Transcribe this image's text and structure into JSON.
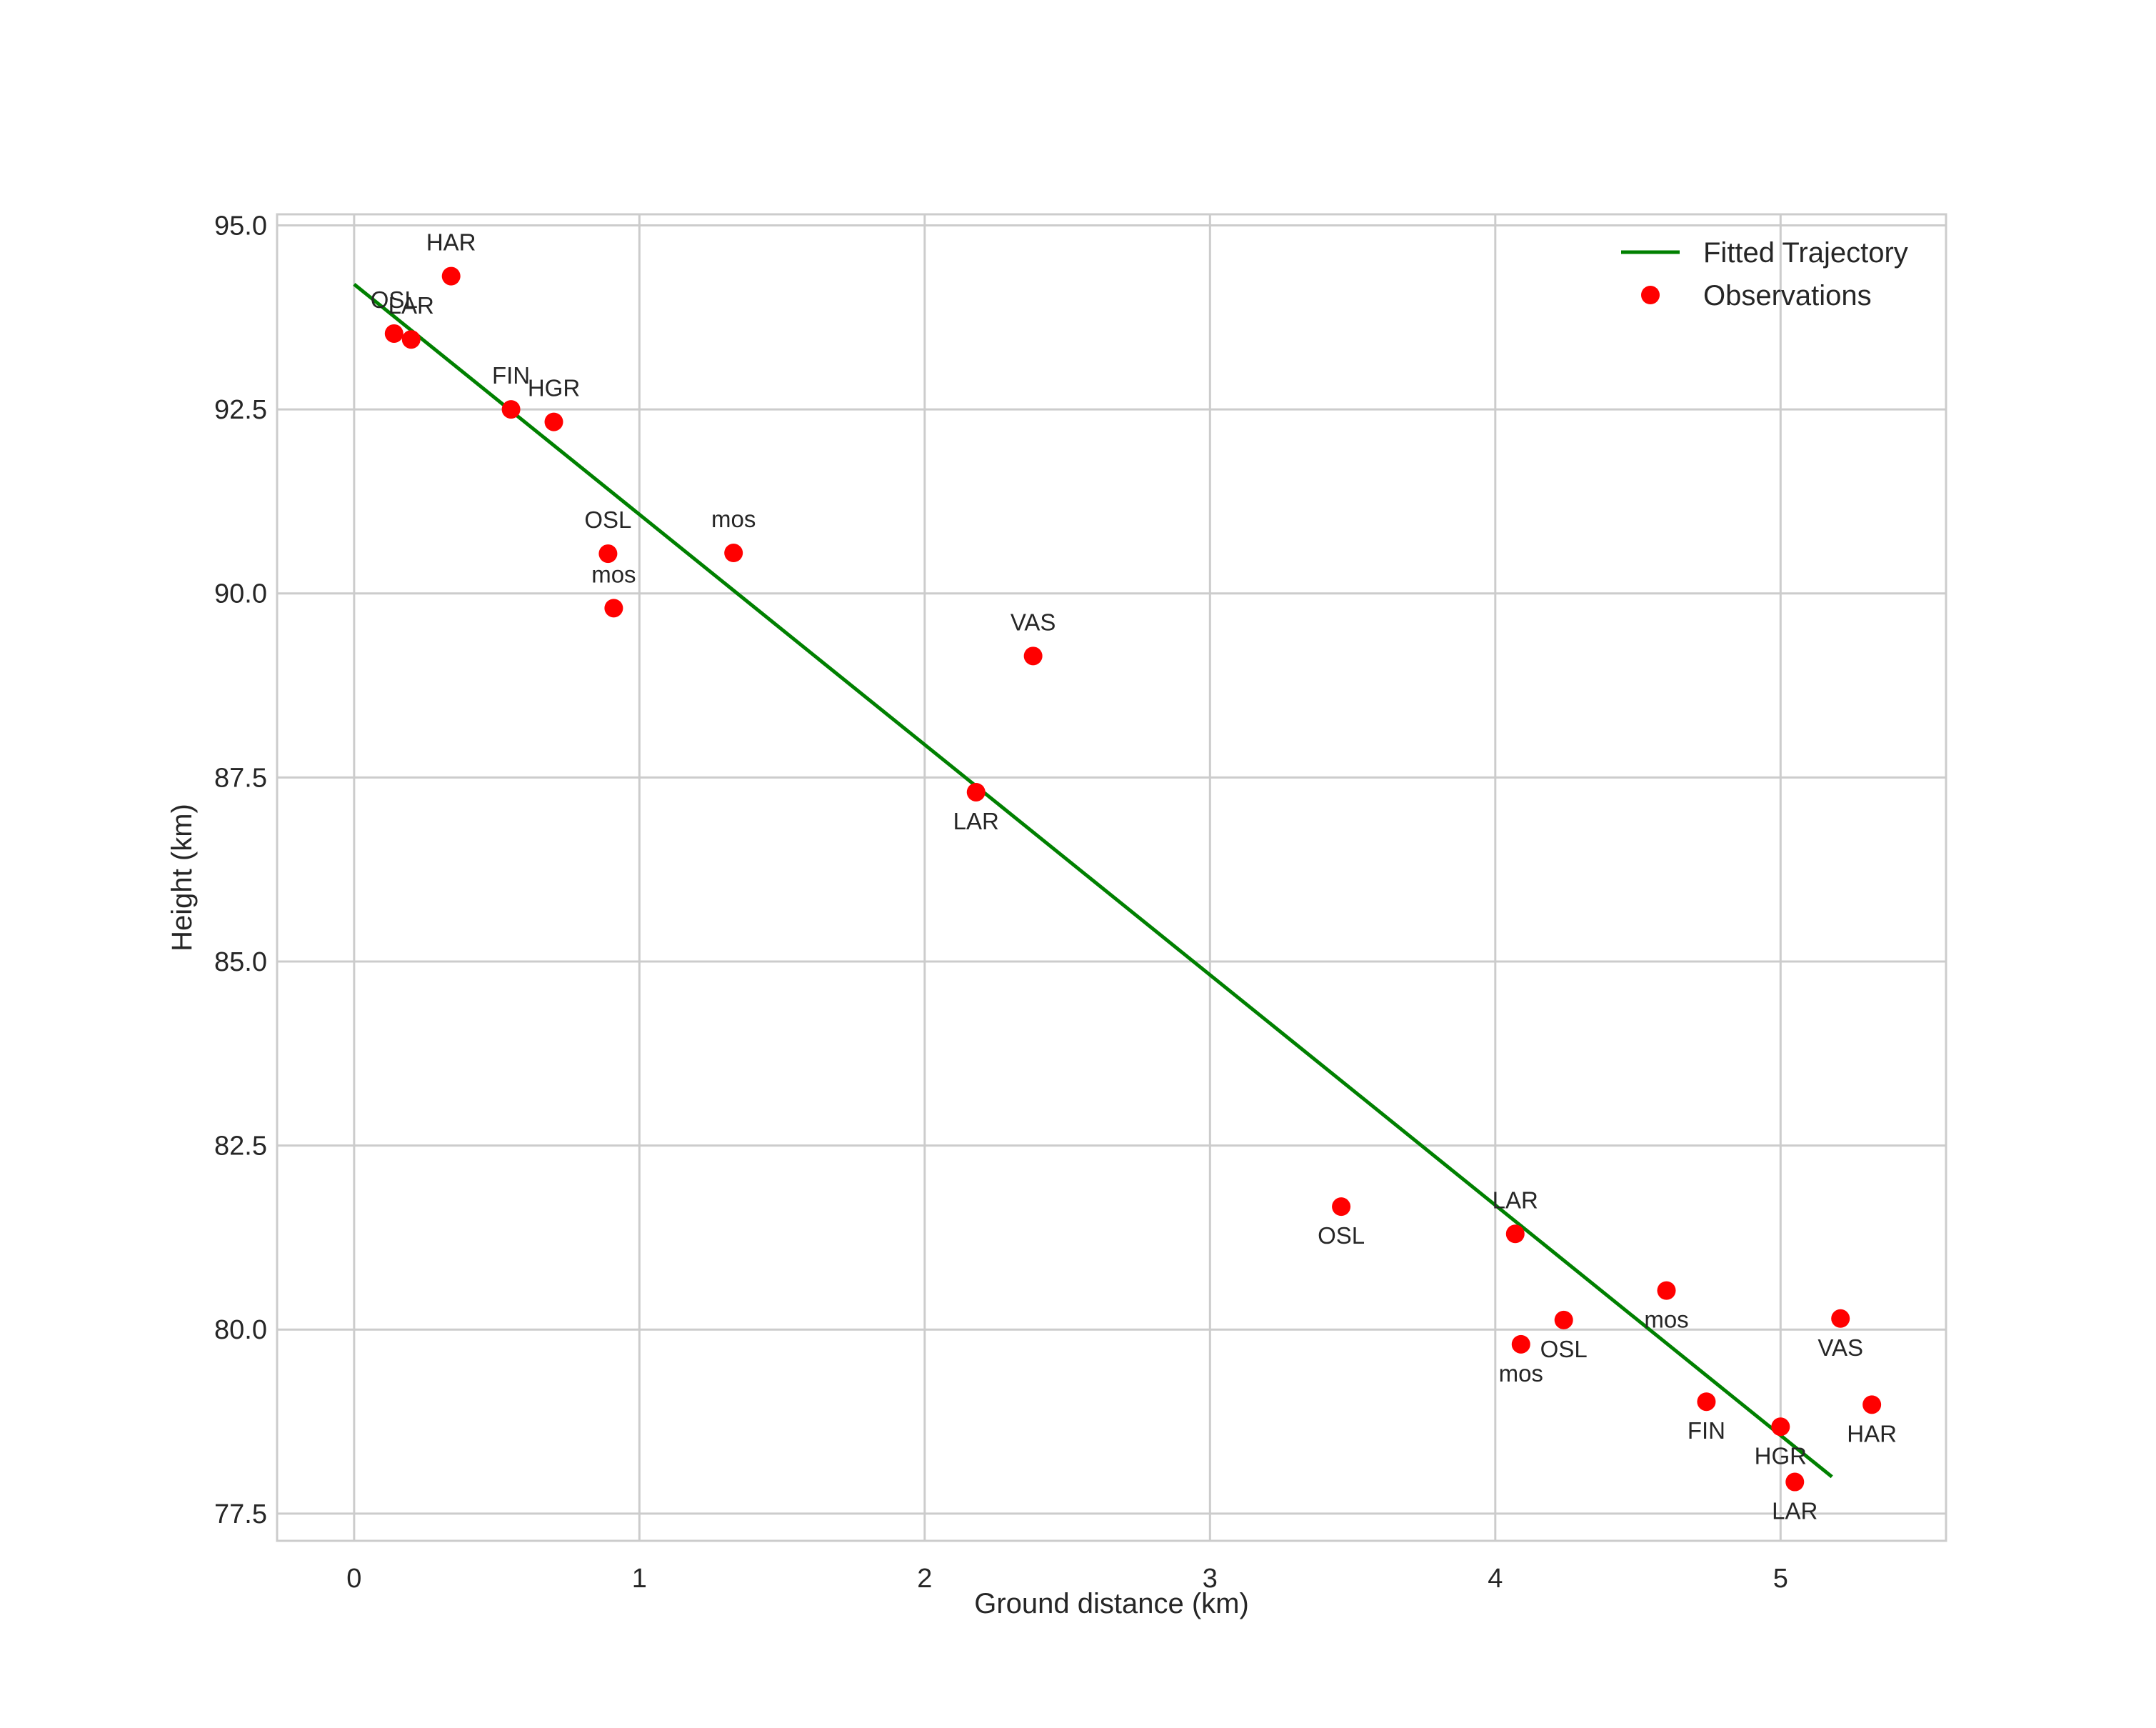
{
  "chart_data": {
    "type": "scatter",
    "title": "",
    "xlabel": "Ground distance (km)",
    "ylabel": "Height (km)",
    "xlim": [
      -0.27,
      5.58
    ],
    "ylim": [
      77.13,
      95.15
    ],
    "xticks": [
      0,
      1,
      2,
      3,
      4,
      5
    ],
    "xtick_labels": [
      "0",
      "1",
      "2",
      "3",
      "4",
      "5"
    ],
    "yticks": [
      77.5,
      80.0,
      82.5,
      85.0,
      87.5,
      90.0,
      92.5,
      95.0
    ],
    "ytick_labels": [
      "77.5",
      "80.0",
      "82.5",
      "85.0",
      "87.5",
      "90.0",
      "92.5",
      "95.0"
    ],
    "grid": true,
    "legend_position": "top-right",
    "colors": {
      "line": "#008000",
      "points": "#ff0000",
      "grid": "#cccccc",
      "axes": "#cccccc",
      "text": "#262626"
    },
    "series": [
      {
        "name": "Fitted Trajectory",
        "kind": "line",
        "x": [
          0.0,
          5.18
        ],
        "y": [
          94.2,
          78.0
        ]
      },
      {
        "name": "Observations",
        "kind": "scatter",
        "points": [
          {
            "x": 0.14,
            "y": 93.53,
            "label": "OSL",
            "pos": "above"
          },
          {
            "x": 0.2,
            "y": 93.45,
            "label": "LAR",
            "pos": "above"
          },
          {
            "x": 0.34,
            "y": 94.31,
            "label": "HAR",
            "pos": "above"
          },
          {
            "x": 0.55,
            "y": 92.5,
            "label": "FIN",
            "pos": "above"
          },
          {
            "x": 0.7,
            "y": 92.33,
            "label": "HGR",
            "pos": "above"
          },
          {
            "x": 0.89,
            "y": 90.54,
            "label": "OSL",
            "pos": "above"
          },
          {
            "x": 0.91,
            "y": 89.8,
            "label": "mos",
            "pos": "above"
          },
          {
            "x": 1.33,
            "y": 90.55,
            "label": "mos",
            "pos": "above"
          },
          {
            "x": 2.38,
            "y": 89.15,
            "label": "VAS",
            "pos": "above"
          },
          {
            "x": 2.18,
            "y": 87.3,
            "label": "LAR",
            "pos": "below"
          },
          {
            "x": 3.46,
            "y": 81.67,
            "label": "OSL",
            "pos": "below"
          },
          {
            "x": 4.07,
            "y": 81.3,
            "label": "LAR",
            "pos": "above"
          },
          {
            "x": 4.09,
            "y": 79.8,
            "label": "mos",
            "pos": "below"
          },
          {
            "x": 4.24,
            "y": 80.13,
            "label": "OSL",
            "pos": "below"
          },
          {
            "x": 4.6,
            "y": 80.53,
            "label": "mos",
            "pos": "below"
          },
          {
            "x": 4.74,
            "y": 79.02,
            "label": "FIN",
            "pos": "below"
          },
          {
            "x": 5.0,
            "y": 78.68,
            "label": "HGR",
            "pos": "below"
          },
          {
            "x": 5.05,
            "y": 77.93,
            "label": "LAR",
            "pos": "below"
          },
          {
            "x": 5.21,
            "y": 80.15,
            "label": "VAS",
            "pos": "below"
          },
          {
            "x": 5.32,
            "y": 78.98,
            "label": "HAR",
            "pos": "below"
          }
        ]
      }
    ]
  }
}
